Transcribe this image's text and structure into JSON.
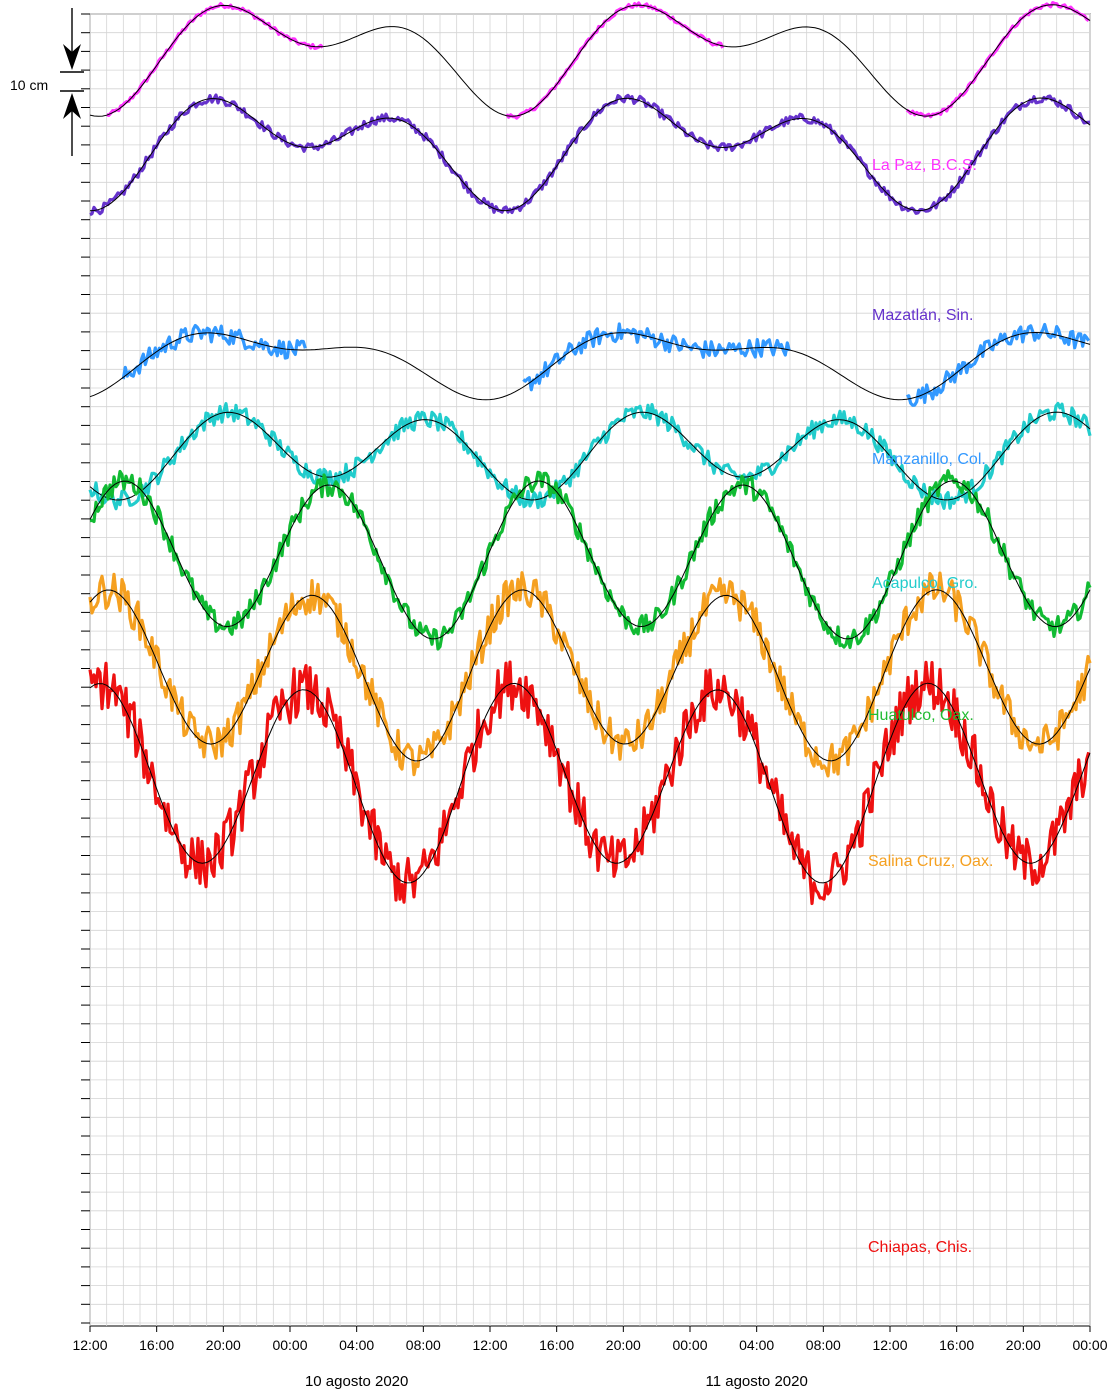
{
  "chart_data": {
    "type": "line",
    "title": "",
    "xlabel": "",
    "ylabel": "",
    "grid": true,
    "scale_bar": {
      "label": "10 cm",
      "value_cm": 10
    },
    "x_ticks": [
      "12:00",
      "16:00",
      "20:00",
      "00:00",
      "04:00",
      "08:00",
      "12:00",
      "16:00",
      "20:00",
      "00:00",
      "04:00",
      "08:00",
      "12:00",
      "16:00",
      "20:00",
      "00:00"
    ],
    "date_labels": [
      "10 agosto 2020",
      "11 agosto 2020"
    ],
    "xlim_hours": [
      0,
      60
    ],
    "series": [
      {
        "name": "La Paz, B.C.S.",
        "color": "#ff33ff",
        "observed_segments": [
          [
            1,
            14
          ],
          [
            25,
            38
          ],
          [
            49,
            60
          ]
        ],
        "base_cm": 0,
        "noise_cm": 0.6,
        "model": {
          "offset_cm": 0,
          "amp_cm": 18,
          "phase_h": 7,
          "ineq": 0.55,
          "drift_cm_per_h": 0
        }
      },
      {
        "name": "Mazatlán, Sin.",
        "color": "#6633cc",
        "observed_segments": [
          [
            0,
            60
          ]
        ],
        "base_cm": -25.5,
        "noise_cm": 1.2,
        "model": {
          "offset_cm": 0,
          "amp_cm": 18,
          "phase_h": 6.5,
          "ineq": 0.5,
          "drift_cm_per_h": 0
        }
      },
      {
        "name": "Manzanillo, Col.",
        "color": "#3399ff",
        "observed_segments": [],
        "base_cm": -55,
        "noise_cm": 0,
        "model": null
      },
      {
        "name": "Acapulco, Gro.",
        "color": "#3399ff",
        "label_color": "#22cccc",
        "observed_segments": [
          [
            2,
            13
          ],
          [
            26,
            42
          ],
          [
            49,
            60
          ]
        ],
        "base_cm": -83.5,
        "noise_cm": 2.5,
        "model": {
          "offset_cm": 0,
          "amp_cm": 11,
          "phase_h": 5.5,
          "ineq": 0.65,
          "drift_cm_per_h": 0
        }
      },
      {
        "name": "Huatulco, Oax.",
        "color": "#22cccc",
        "label_color": "#22bb33",
        "observed_segments": [
          [
            0,
            60
          ]
        ],
        "base_cm": -108.5,
        "noise_cm": 2.5,
        "model": {
          "offset_cm": 0,
          "amp_cm": 13,
          "phase_h": 8,
          "ineq": 0.25,
          "drift_cm_per_h": 0
        }
      },
      {
        "name": "Huatulco, Oax.",
        "color": "#11bb33",
        "observed_segments": [
          [
            0,
            60
          ]
        ],
        "base_cm": -137,
        "noise_cm": 3,
        "model": {
          "offset_cm": 0,
          "amp_cm": 22,
          "phase_h": 2,
          "ineq": 0.08,
          "drift_cm_per_h": 0
        }
      },
      {
        "name": "Salina Cruz, Oax.",
        "color": "#f5a020",
        "observed_segments": [
          [
            0,
            60
          ]
        ],
        "base_cm": -168,
        "noise_cm": 5,
        "model": {
          "offset_cm": 0,
          "amp_cm": 24,
          "phase_h": 1,
          "ineq": 0.1,
          "drift_cm_per_h": 0
        }
      },
      {
        "name": "Chiapas, Chis.",
        "color": "#ee1111",
        "observed_segments": [
          [
            0,
            52
          ],
          [
            52,
            60
          ]
        ],
        "base_cm": -197,
        "noise_cm": 7,
        "model": {
          "offset_cm": 0,
          "amp_cm": 28,
          "phase_h": 0.5,
          "ineq": 0.1,
          "drift_cm_per_h": 0
        }
      }
    ],
    "station_labels": [
      {
        "text": "La Paz, B.C.S.",
        "color": "#ff33ff"
      },
      {
        "text": "Mazatlán, Sin.",
        "color": "#6633cc"
      },
      {
        "text": "Manzanillo, Col.",
        "color": "#3399ff"
      },
      {
        "text": "Acapulco, Gro.",
        "color": "#22cccc"
      },
      {
        "text": "Huatulco, Oax.",
        "color": "#22bb33"
      },
      {
        "text": "Salina Cruz, Oax.",
        "color": "#f5a020"
      },
      {
        "text": "Chiapas, Chis.",
        "color": "#ee1111"
      }
    ]
  }
}
